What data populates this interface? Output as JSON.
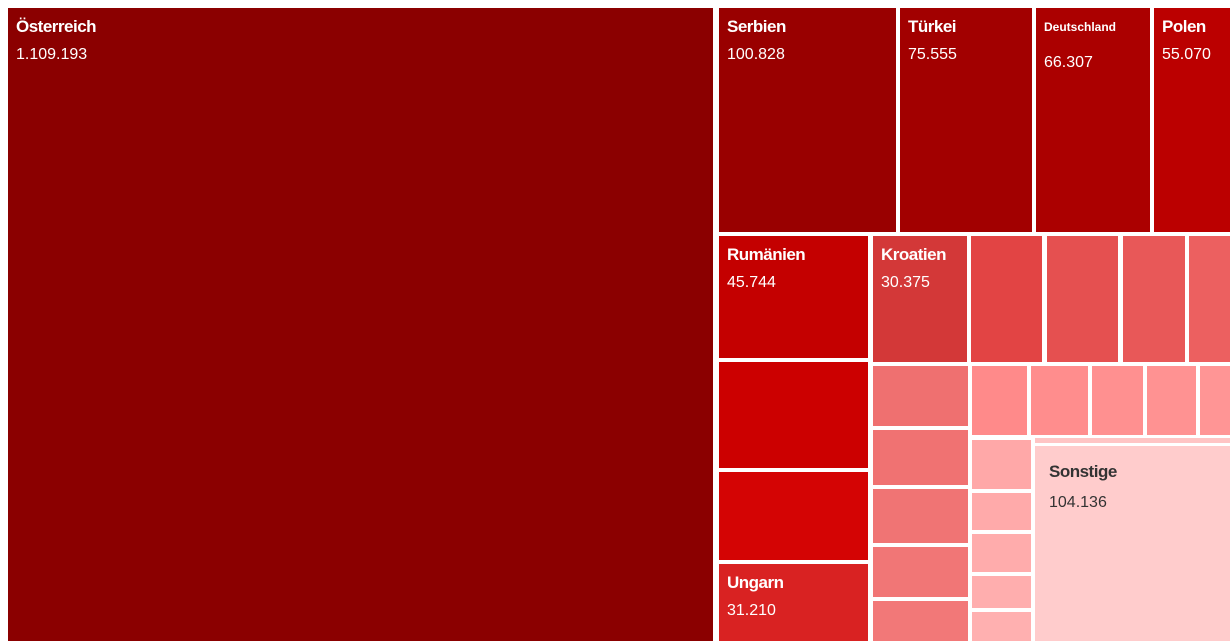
{
  "tiles": [
    {
      "label": "Österreich",
      "value": "1.109.193"
    },
    {
      "label": "Serbien",
      "value": "100.828"
    },
    {
      "label": "Türkei",
      "value": "75.555"
    },
    {
      "label": "Deutschland",
      "value": "66.307"
    },
    {
      "label": "Polen",
      "value": "55.070"
    },
    {
      "label": "Rumänien",
      "value": "45.744"
    },
    {
      "label": "Kroatien",
      "value": "30.375"
    },
    {
      "label": "Ungarn",
      "value": "31.210"
    },
    {
      "label": "Sonstige",
      "value": "104.136"
    }
  ]
}
